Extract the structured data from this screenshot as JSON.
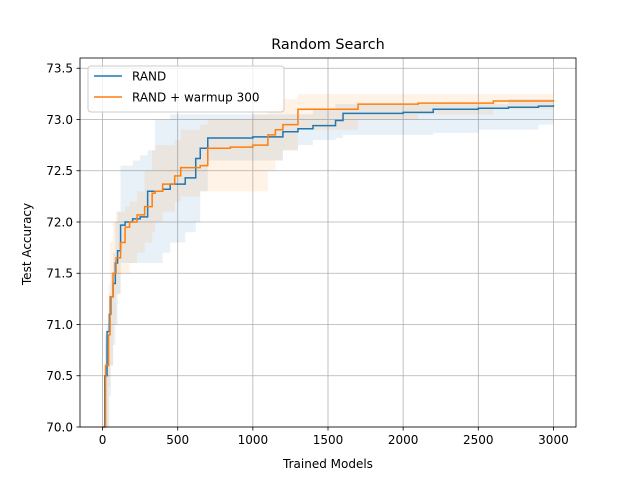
{
  "chart_data": {
    "type": "line",
    "title": "Random Search",
    "xlabel": "Trained Models",
    "ylabel": "Test Accuracy",
    "xlim": [
      -150,
      3150
    ],
    "ylim": [
      70.0,
      73.6
    ],
    "xticks": [
      0,
      500,
      1000,
      1500,
      2000,
      2500,
      3000
    ],
    "yticks": [
      70.0,
      70.5,
      71.0,
      71.5,
      72.0,
      72.5,
      73.0,
      73.5
    ],
    "xtick_labels": [
      "0",
      "500",
      "1000",
      "1500",
      "2000",
      "2500",
      "3000"
    ],
    "ytick_labels": [
      "70.0",
      "70.5",
      "71.0",
      "71.5",
      "72.0",
      "72.5",
      "73.0",
      "73.5"
    ],
    "grid": true,
    "legend_position": "top-left",
    "series": [
      {
        "name": "RAND",
        "color": "#1f77b4",
        "step": true,
        "x": [
          1,
          15,
          30,
          45,
          55,
          70,
          85,
          100,
          120,
          150,
          200,
          250,
          300,
          350,
          400,
          450,
          550,
          620,
          650,
          700,
          1000,
          1200,
          1300,
          1400,
          1550,
          1600,
          2000,
          2200,
          2500,
          2700,
          2900,
          3000
        ],
        "y": [
          70.0,
          70.5,
          70.93,
          71.1,
          71.27,
          71.4,
          71.6,
          71.72,
          71.97,
          72.0,
          72.03,
          72.05,
          72.3,
          72.3,
          72.32,
          72.37,
          72.43,
          72.62,
          72.72,
          72.82,
          72.83,
          72.88,
          72.91,
          72.94,
          72.99,
          73.06,
          73.07,
          73.1,
          73.11,
          73.12,
          73.13,
          73.14
        ],
        "band_low": [
          70.0,
          70.0,
          70.0,
          70.3,
          70.6,
          70.8,
          71.0,
          71.3,
          71.6,
          71.6,
          71.6,
          71.6,
          71.6,
          71.6,
          71.7,
          71.8,
          71.9,
          72.0,
          72.3,
          72.6,
          72.6,
          72.7,
          72.75,
          72.8,
          72.82,
          72.85,
          72.85,
          72.87,
          72.9,
          72.9,
          72.95,
          73.0
        ],
        "band_high": [
          70.0,
          70.9,
          71.0,
          71.3,
          71.5,
          71.7,
          72.0,
          72.1,
          72.55,
          72.55,
          72.6,
          72.65,
          72.7,
          73.0,
          73.0,
          73.05,
          73.05,
          73.05,
          73.05,
          73.05,
          73.05,
          73.05,
          73.05,
          73.1,
          73.15,
          73.15,
          73.15,
          73.15,
          73.15,
          73.2,
          73.2,
          73.2
        ]
      },
      {
        "name": "RAND + warmup 300",
        "color": "#ff7f0e",
        "step": true,
        "x": [
          1,
          20,
          40,
          50,
          70,
          90,
          120,
          150,
          180,
          230,
          280,
          330,
          350,
          400,
          480,
          520,
          650,
          700,
          850,
          1000,
          1100,
          1150,
          1200,
          1300,
          1700,
          2100,
          2600,
          3000
        ],
        "y": [
          70.0,
          70.6,
          70.9,
          71.27,
          71.5,
          71.65,
          71.8,
          71.95,
          72.0,
          72.07,
          72.15,
          72.28,
          72.3,
          72.37,
          72.45,
          72.53,
          72.55,
          72.72,
          72.73,
          72.75,
          72.85,
          72.9,
          72.95,
          73.1,
          73.15,
          73.16,
          73.18,
          73.19
        ],
        "band_low": [
          70.0,
          70.0,
          70.4,
          70.6,
          71.0,
          71.3,
          71.5,
          71.5,
          71.6,
          71.7,
          71.8,
          71.9,
          72.0,
          72.1,
          72.2,
          72.25,
          72.3,
          72.3,
          72.3,
          72.3,
          72.5,
          72.6,
          72.7,
          72.9,
          73.0,
          73.05,
          73.1,
          73.15
        ],
        "band_high": [
          70.0,
          70.8,
          71.4,
          71.8,
          72.0,
          72.1,
          72.1,
          72.15,
          72.2,
          72.3,
          72.5,
          72.7,
          72.75,
          72.75,
          72.8,
          72.9,
          72.95,
          73.0,
          73.0,
          73.05,
          73.1,
          73.15,
          73.2,
          73.25,
          73.25,
          73.25,
          73.25,
          73.25
        ]
      }
    ]
  }
}
